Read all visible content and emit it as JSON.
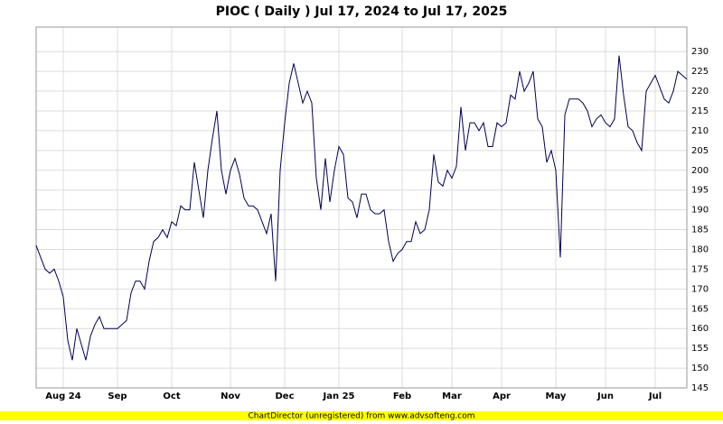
{
  "chart_data": {
    "type": "line",
    "title": "PIOC ( Daily ) Jul 17, 2024 to Jul 17, 2025",
    "footer": "ChartDirector (unregistered) from www.advsofteng.com",
    "categories": [
      null,
      null,
      null,
      null,
      null,
      null,
      "Aug 24",
      null,
      null,
      null,
      null,
      null,
      null,
      null,
      null,
      null,
      null,
      null,
      "Sep",
      null,
      null,
      null,
      null,
      null,
      null,
      null,
      null,
      null,
      null,
      null,
      "Oct",
      null,
      null,
      null,
      null,
      null,
      null,
      null,
      null,
      null,
      null,
      null,
      null,
      "Nov",
      null,
      null,
      null,
      null,
      null,
      null,
      null,
      null,
      null,
      null,
      null,
      "Dec",
      null,
      null,
      null,
      null,
      null,
      null,
      null,
      null,
      null,
      null,
      null,
      "Jan 25",
      null,
      null,
      null,
      null,
      null,
      null,
      null,
      null,
      null,
      null,
      null,
      null,
      null,
      "Feb",
      null,
      null,
      null,
      null,
      null,
      null,
      null,
      null,
      null,
      null,
      "Mar",
      null,
      null,
      null,
      null,
      null,
      null,
      null,
      null,
      null,
      null,
      "Apr",
      null,
      null,
      null,
      null,
      null,
      null,
      null,
      null,
      null,
      null,
      null,
      "May",
      null,
      null,
      null,
      null,
      null,
      null,
      null,
      null,
      null,
      null,
      "Jun",
      null,
      null,
      null,
      null,
      null,
      null,
      null,
      null,
      null,
      null,
      "Jul",
      null,
      null,
      null,
      null,
      null,
      null,
      null
    ],
    "series": [
      {
        "name": "PIOC",
        "color": "#000050",
        "values": [
          181,
          178,
          175,
          174,
          175,
          172,
          168,
          157,
          152,
          160,
          156,
          152,
          158,
          161,
          163,
          160,
          160,
          160,
          160,
          161,
          162,
          169,
          172,
          172,
          170,
          177,
          182,
          183,
          185,
          183,
          187,
          186,
          191,
          190,
          190,
          202,
          195,
          188,
          200,
          208,
          215,
          200,
          194,
          200,
          203,
          199,
          193,
          191,
          191,
          190,
          187,
          184,
          189,
          172,
          200,
          212,
          222,
          227,
          222,
          217,
          220,
          217,
          198,
          190,
          203,
          192,
          200,
          206,
          204,
          193,
          192,
          188,
          194,
          194,
          190,
          189,
          189,
          190,
          182,
          177,
          179,
          180,
          182,
          182,
          187,
          184,
          185,
          190,
          204,
          197,
          196,
          200,
          198,
          201,
          216,
          205,
          212,
          212,
          210,
          212,
          206,
          206,
          212,
          211,
          212,
          219,
          218,
          225,
          220,
          222,
          225,
          213,
          211,
          202,
          205,
          200,
          178,
          214,
          218,
          218,
          218,
          217,
          215,
          211,
          213,
          214,
          212,
          211,
          213,
          229,
          219,
          211,
          210,
          207,
          205,
          220,
          222,
          224,
          221,
          218,
          217,
          220,
          225,
          224,
          223
        ]
      }
    ],
    "ylim": [
      145,
      236.2
    ],
    "yticks": [
      145,
      150,
      155,
      160,
      165,
      170,
      175,
      180,
      185,
      190,
      195,
      200,
      205,
      210,
      215,
      220,
      225,
      230
    ],
    "grid": true
  }
}
